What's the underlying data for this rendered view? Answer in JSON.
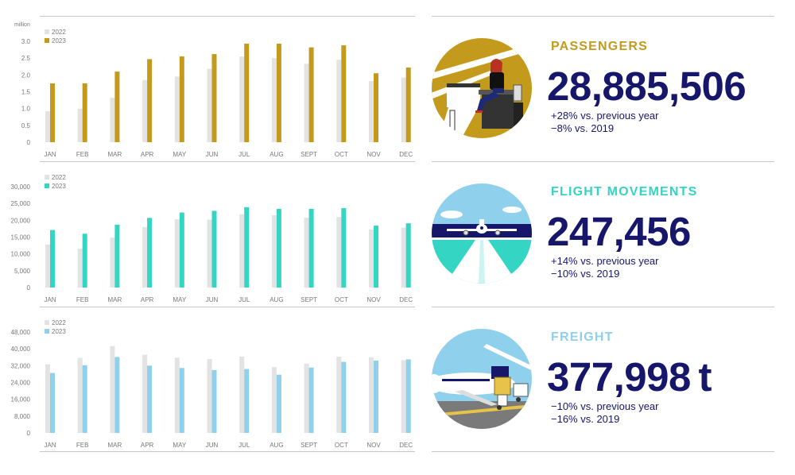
{
  "colors": {
    "bar_2022": "#e3e3e3",
    "passengers": "#c39a1c",
    "flights": "#34d5c3",
    "freight": "#8fd0ec",
    "navy": "#16166b",
    "axis_text": "#777777"
  },
  "chart_data": [
    {
      "type": "bar",
      "unit_label": "million",
      "categories": [
        "JAN",
        "FEB",
        "MAR",
        "APR",
        "MAY",
        "JUN",
        "JUL",
        "AUG",
        "SEPT",
        "OCT",
        "NOV",
        "DEC"
      ],
      "series": [
        {
          "name": "2022",
          "values": [
            0.92,
            1.0,
            1.32,
            1.85,
            1.95,
            2.18,
            2.55,
            2.5,
            2.33,
            2.45,
            1.82,
            1.92
          ]
        },
        {
          "name": "2023",
          "values": [
            1.75,
            1.75,
            2.1,
            2.47,
            2.55,
            2.62,
            2.93,
            2.93,
            2.82,
            2.88,
            2.05,
            2.22
          ]
        }
      ],
      "yticks": [
        "0",
        "0.5",
        "1.0",
        "1.5",
        "2.0",
        "2.5",
        "3.0"
      ],
      "ylim": [
        0,
        3.0
      ]
    },
    {
      "type": "bar",
      "categories": [
        "JAN",
        "FEB",
        "MAR",
        "APR",
        "MAY",
        "JUN",
        "JUL",
        "AUG",
        "SEPT",
        "OCT",
        "NOV",
        "DEC"
      ],
      "series": [
        {
          "name": "2022",
          "values": [
            12800,
            11600,
            14800,
            18000,
            20300,
            20200,
            21800,
            21500,
            20800,
            21000,
            17300,
            17800
          ]
        },
        {
          "name": "2023",
          "values": [
            17100,
            16000,
            18700,
            20700,
            22300,
            22800,
            23900,
            23400,
            23400,
            23600,
            18400,
            19100
          ]
        }
      ],
      "yticks": [
        "0",
        "5,000",
        "10,000",
        "15,000",
        "20,000",
        "25,000",
        "30,000"
      ],
      "ylim": [
        0,
        30000
      ]
    },
    {
      "type": "bar",
      "categories": [
        "JAN",
        "FEB",
        "MAR",
        "APR",
        "MAY",
        "JUN",
        "JUL",
        "AUG",
        "SEPT",
        "OCT",
        "NOV",
        "DEC"
      ],
      "series": [
        {
          "name": "2022",
          "values": [
            32600,
            35700,
            41300,
            37200,
            35800,
            35200,
            36300,
            31300,
            33000,
            36300,
            36000,
            34600
          ]
        },
        {
          "name": "2023",
          "values": [
            28500,
            32200,
            36100,
            32000,
            30900,
            29900,
            30400,
            27700,
            31100,
            33800,
            34400,
            35000
          ]
        }
      ],
      "yticks": [
        "0",
        "8,000",
        "16,000",
        "24,000",
        "32,000",
        "40,000",
        "48,000"
      ],
      "ylim": [
        0,
        48000
      ]
    }
  ],
  "stats": [
    {
      "title": "PASSENGERS",
      "value": "28,885,506",
      "lines": [
        "+28% vs. previous year",
        "−8% vs. 2019"
      ]
    },
    {
      "title": "FLIGHT MOVEMENTS",
      "value": "247,456",
      "lines": [
        "+14% vs. previous year",
        "−10% vs. 2019"
      ]
    },
    {
      "title": "FREIGHT",
      "value": "377,998 t",
      "lines": [
        "−10% vs. previous year",
        "−16% vs. 2019"
      ]
    }
  ],
  "illustrations": [
    "passenger-lounge-illustration",
    "runway-airplane-illustration",
    "cargo-loading-illustration"
  ]
}
